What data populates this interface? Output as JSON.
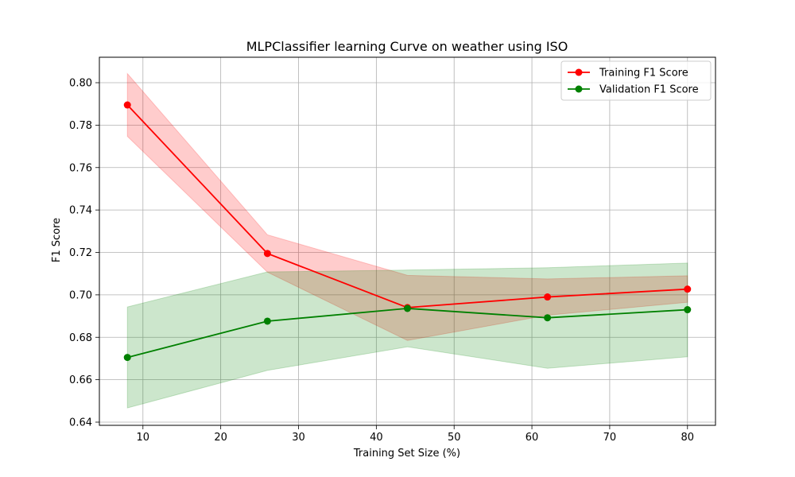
{
  "chart_data": {
    "type": "line",
    "title": "MLPClassifier learning Curve on weather using ISO",
    "xlabel": "Training Set Size (%)",
    "ylabel": "F1 Score",
    "xlim": [
      4.4,
      83.6
    ],
    "ylim": [
      0.6385,
      0.812
    ],
    "xticks": [
      10,
      20,
      30,
      40,
      50,
      60,
      70,
      80
    ],
    "yticks": [
      0.64,
      0.66,
      0.68,
      0.7,
      0.72,
      0.74,
      0.76,
      0.78,
      0.8
    ],
    "grid": true,
    "legend_position": "top-right",
    "x": [
      8,
      26,
      44,
      62,
      80
    ],
    "series": [
      {
        "name": "Training F1 Score",
        "color": "#ff0000",
        "band_color": "#ff0000",
        "values": [
          0.7895,
          0.7195,
          0.694,
          0.699,
          0.7027
        ],
        "upper": [
          0.8043,
          0.7283,
          0.7092,
          0.7075,
          0.709
        ],
        "lower": [
          0.7747,
          0.7107,
          0.6785,
          0.6904,
          0.6965
        ]
      },
      {
        "name": "Validation F1 Score",
        "color": "#008000",
        "band_color": "#008000",
        "values": [
          0.6705,
          0.6876,
          0.6936,
          0.6892,
          0.693
        ],
        "upper": [
          0.6943,
          0.7108,
          0.7117,
          0.7128,
          0.715
        ],
        "lower": [
          0.6467,
          0.6644,
          0.6755,
          0.6654,
          0.6708
        ]
      }
    ]
  }
}
